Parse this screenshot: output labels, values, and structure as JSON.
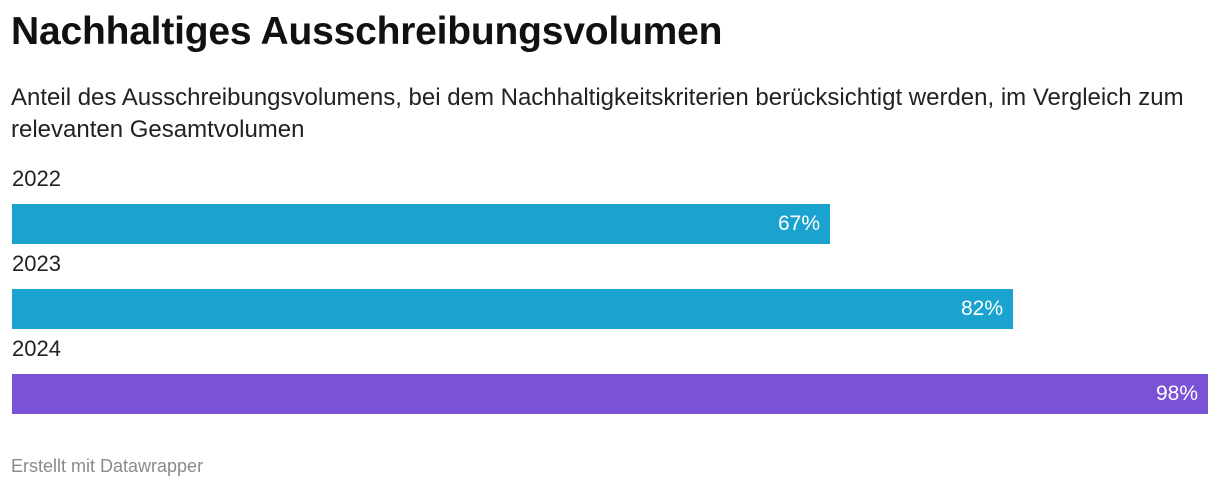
{
  "chart": {
    "title": "Nachhaltiges Ausschreibungsvolumen",
    "subtitle": "Anteil des Ausschreibungsvolumens, bei dem Nachhaltigkeitskriterien berücksichtigt werden, im Vergleich zum relevanten Gesamtvolumen",
    "footer": "Erstellt mit Datawrapper"
  },
  "colors": {
    "bar_default": "#1ba3cf",
    "bar_highlight": "#7952d6"
  },
  "chart_data": {
    "type": "bar",
    "orientation": "horizontal",
    "title": "Nachhaltiges Ausschreibungsvolumen",
    "subtitle": "Anteil des Ausschreibungsvolumens, bei dem Nachhaltigkeitskriterien berücksichtigt werden, im Vergleich zum relevanten Gesamtvolumen",
    "categories": [
      "2022",
      "2023",
      "2024"
    ],
    "values": [
      67,
      82,
      98
    ],
    "value_labels": [
      "67%",
      "82%",
      "98%"
    ],
    "unit": "%",
    "xlim": [
      0,
      98
    ],
    "bar_colors": [
      "#1ba3cf",
      "#1ba3cf",
      "#7952d6"
    ],
    "grid": false,
    "legend": "none"
  }
}
